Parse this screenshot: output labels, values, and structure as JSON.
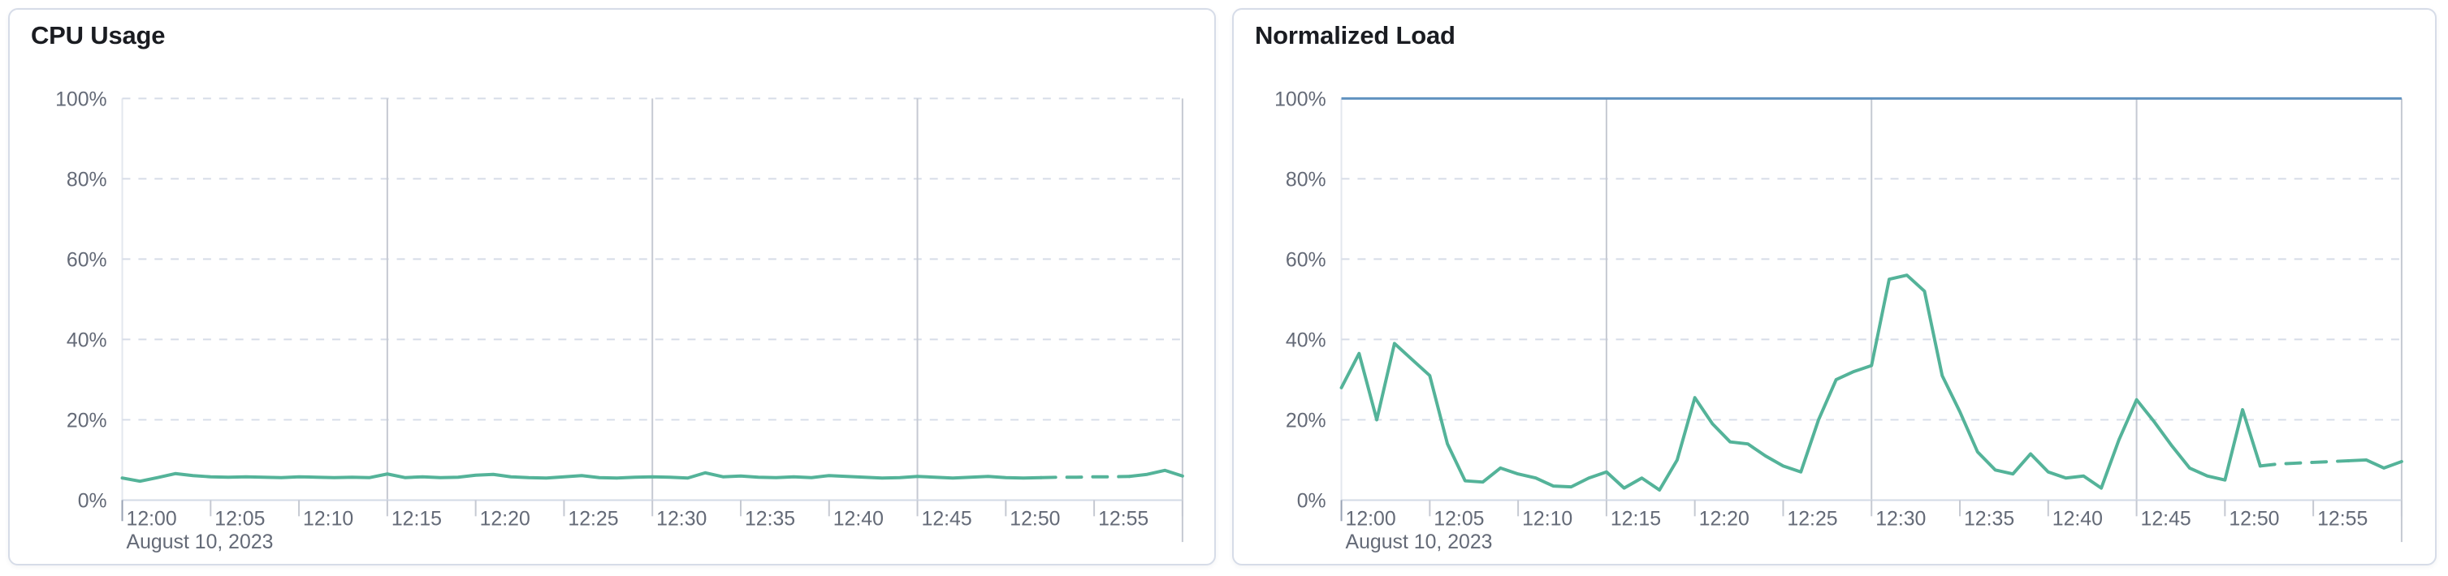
{
  "page": {
    "background": "#ffffff"
  },
  "cards": [
    {
      "title": "CPU Usage"
    },
    {
      "title": "Normalized Load"
    }
  ],
  "colors": {
    "series_green": "#54b399",
    "threshold_blue": "#6092c0",
    "h_gridline_dashed": "#d6dce8",
    "v_gridline_solid": "#c5c9d2",
    "axis_baseline": "#d3dae6",
    "plot_left_border": "#e3e7ee",
    "tick_label_text": "#646a77",
    "title_text": "#1a1c21",
    "card_border": "#d6dce8"
  },
  "chart_data": [
    {
      "type": "line",
      "title": "CPU Usage",
      "xlabel": "",
      "ylabel": "",
      "ylim": [
        0,
        100
      ],
      "grid": "horizontal dashed at 20/40/60/80/100, vertical solid every 15 min",
      "legend": "none",
      "x_domain_minutes": [
        0,
        60
      ],
      "x_date_label": "August 10, 2023",
      "x_ticks": [
        {
          "minute": 0,
          "label": "12:00"
        },
        {
          "minute": 5,
          "label": "12:05"
        },
        {
          "minute": 10,
          "label": "12:10"
        },
        {
          "minute": 15,
          "label": "12:15"
        },
        {
          "minute": 20,
          "label": "12:20"
        },
        {
          "minute": 25,
          "label": "12:25"
        },
        {
          "minute": 30,
          "label": "12:30"
        },
        {
          "minute": 35,
          "label": "12:35"
        },
        {
          "minute": 40,
          "label": "12:40"
        },
        {
          "minute": 45,
          "label": "12:45"
        },
        {
          "minute": 50,
          "label": "12:50"
        },
        {
          "minute": 55,
          "label": "12:55"
        }
      ],
      "extra_tick_minutes": [
        60
      ],
      "y_ticks": [
        {
          "value": 0,
          "label": "0%"
        },
        {
          "value": 20,
          "label": "20%"
        },
        {
          "value": 40,
          "label": "40%"
        },
        {
          "value": 60,
          "label": "60%"
        },
        {
          "value": 80,
          "label": "80%"
        },
        {
          "value": 100,
          "label": "100%"
        }
      ],
      "v_gridline_minutes": [
        15,
        30,
        45,
        60
      ],
      "threshold": null,
      "series": [
        {
          "name": "CPU Usage",
          "unit": "%",
          "color": "#54b399",
          "minute_step": 1,
          "dashed_from_index": 52,
          "dashed_to_index": 57,
          "values_percent": [
            5.5,
            4.7,
            5.6,
            6.6,
            6.1,
            5.8,
            5.7,
            5.8,
            5.7,
            5.6,
            5.8,
            5.7,
            5.6,
            5.7,
            5.6,
            6.5,
            5.6,
            5.8,
            5.6,
            5.7,
            6.2,
            6.4,
            5.8,
            5.6,
            5.5,
            5.8,
            6.1,
            5.6,
            5.5,
            5.7,
            5.8,
            5.7,
            5.5,
            6.8,
            5.8,
            6.0,
            5.7,
            5.6,
            5.8,
            5.6,
            6.1,
            5.9,
            5.7,
            5.5,
            5.6,
            5.9,
            5.7,
            5.5,
            5.7,
            5.9,
            5.6,
            5.5,
            5.6,
            5.7,
            5.7,
            5.8,
            5.8,
            5.9,
            6.4,
            7.4,
            6.0
          ]
        }
      ]
    },
    {
      "type": "line",
      "title": "Normalized Load",
      "xlabel": "",
      "ylabel": "",
      "ylim": [
        0,
        100
      ],
      "grid": "horizontal dashed at 20/40/60/80/100, vertical solid every 15 min",
      "legend": "none",
      "x_domain_minutes": [
        0,
        60
      ],
      "x_date_label": "August 10, 2023",
      "x_ticks": [
        {
          "minute": 0,
          "label": "12:00"
        },
        {
          "minute": 5,
          "label": "12:05"
        },
        {
          "minute": 10,
          "label": "12:10"
        },
        {
          "minute": 15,
          "label": "12:15"
        },
        {
          "minute": 20,
          "label": "12:20"
        },
        {
          "minute": 25,
          "label": "12:25"
        },
        {
          "minute": 30,
          "label": "12:30"
        },
        {
          "minute": 35,
          "label": "12:35"
        },
        {
          "minute": 40,
          "label": "12:40"
        },
        {
          "minute": 45,
          "label": "12:45"
        },
        {
          "minute": 50,
          "label": "12:50"
        },
        {
          "minute": 55,
          "label": "12:55"
        }
      ],
      "extra_tick_minutes": [
        60
      ],
      "y_ticks": [
        {
          "value": 0,
          "label": "0%"
        },
        {
          "value": 20,
          "label": "20%"
        },
        {
          "value": 40,
          "label": "40%"
        },
        {
          "value": 60,
          "label": "60%"
        },
        {
          "value": 80,
          "label": "80%"
        },
        {
          "value": 100,
          "label": "100%"
        }
      ],
      "v_gridline_minutes": [
        15,
        30,
        45,
        60
      ],
      "threshold": {
        "value": 100,
        "color": "#6092c0"
      },
      "series": [
        {
          "name": "Normalized Load",
          "unit": "%",
          "color": "#54b399",
          "minute_step": 1,
          "dashed_from_index": 52,
          "dashed_to_index": 57,
          "values_percent": [
            28.0,
            36.5,
            20.0,
            39.0,
            35.0,
            31.0,
            14.0,
            4.8,
            4.5,
            8.0,
            6.5,
            5.5,
            3.5,
            3.3,
            5.5,
            7.0,
            3.0,
            5.5,
            2.5,
            10.0,
            25.5,
            19.0,
            14.5,
            14.0,
            11.0,
            8.5,
            7.0,
            20.0,
            30.0,
            32.0,
            33.5,
            55.0,
            56.0,
            52.0,
            31.0,
            22.0,
            12.0,
            7.5,
            6.5,
            11.5,
            7.0,
            5.5,
            6.0,
            3.0,
            15.0,
            25.0,
            19.5,
            13.5,
            8.0,
            6.0,
            5.0,
            22.5,
            8.5,
            9.0,
            9.2,
            9.4,
            9.6,
            9.8,
            10.0,
            8.0,
            9.6
          ]
        }
      ]
    }
  ]
}
